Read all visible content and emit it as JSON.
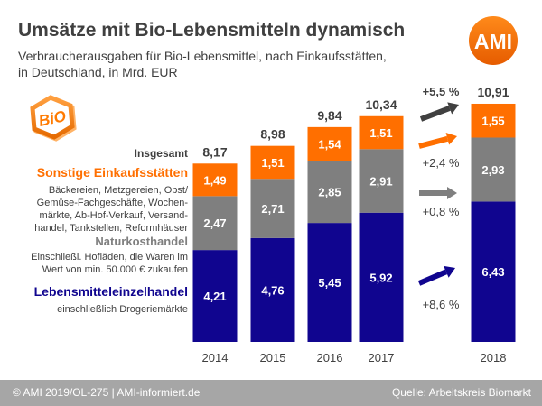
{
  "header": {
    "title": "Umsätze mit Bio-Lebensmitteln dynamisch",
    "subtitle_line1": "Verbraucherausgaben für Bio-Lebensmittel, nach Einkaufsstätten,",
    "subtitle_line2": "in Deutschland, in Mrd. EUR"
  },
  "logos": {
    "ami": "AMI",
    "bio": "BiO"
  },
  "legend": {
    "total_label": "Insgesamt",
    "sonstige_title": "Sonstige Einkaufsstätten",
    "sonstige_desc": [
      "Bäckereien, Metzgereien, Obst/",
      "Gemüse-Fachgeschäfte, Wochen-",
      "märkte, Ab-Hof-Verkauf, Versand-",
      "handel, Tankstellen, Reformhäuser"
    ],
    "natur_title": "Naturkosthandel",
    "natur_desc": [
      "Einschließl. Hofläden, die Waren im",
      "Wert von min. 50.000 € zukaufen"
    ],
    "leh_title": "Lebensmitteleinzelhandel",
    "leh_desc": [
      "einschließlich Drogeriemärkte"
    ]
  },
  "colors": {
    "sonstige": "#ff6f00",
    "natur": "#7f7f7f",
    "leh": "#10058f",
    "sonstige_text": "#ff6f00",
    "natur_text": "#7f7f7f",
    "leh_text": "#10058f"
  },
  "chart_data": {
    "type": "bar",
    "stacked": true,
    "categories": [
      "2014",
      "2015",
      "2016",
      "2017",
      "2018"
    ],
    "series": [
      {
        "name": "Lebensmitteleinzelhandel",
        "values": [
          4.21,
          4.76,
          5.45,
          5.92,
          6.43
        ],
        "labels": [
          "4,21",
          "4,76",
          "5,45",
          "5,92",
          "6,43"
        ]
      },
      {
        "name": "Naturkosthandel",
        "values": [
          2.47,
          2.71,
          2.85,
          2.91,
          2.93
        ],
        "labels": [
          "2,47",
          "2,71",
          "2,85",
          "2,91",
          "2,93"
        ]
      },
      {
        "name": "Sonstige Einkaufsstätten",
        "values": [
          1.49,
          1.51,
          1.54,
          1.51,
          1.55
        ],
        "labels": [
          "1,49",
          "1,51",
          "1,54",
          "1,51",
          "1,55"
        ]
      }
    ],
    "totals": [
      8.17,
      8.98,
      9.84,
      10.34,
      10.91
    ],
    "total_labels": [
      "8,17",
      "8,98",
      "9,84",
      "10,34",
      "10,91"
    ],
    "changes": [
      {
        "target": "Insgesamt",
        "label": "+5,5 %",
        "color": "#404040"
      },
      {
        "target": "Sonstige Einkaufsstätten",
        "label": "+2,4 %",
        "color": "#ff6f00"
      },
      {
        "target": "Naturkosthandel",
        "label": "+0,8 %",
        "color": "#7f7f7f"
      },
      {
        "target": "Lebensmitteleinzelhandel",
        "label": "+8,6 %",
        "color": "#10058f"
      }
    ]
  },
  "footer": {
    "left": "© AMI 2019/OL-275 | AMI-informiert.de",
    "right": "Quelle: Arbeitskreis Biomarkt"
  }
}
